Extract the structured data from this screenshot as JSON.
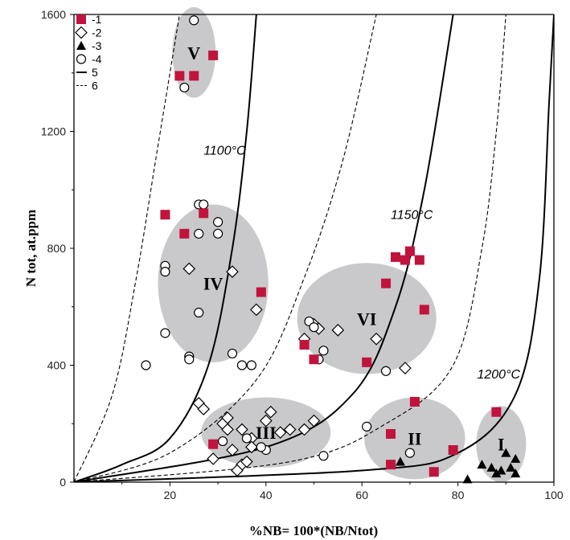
{
  "colors": {
    "accent": "#c0143c",
    "region": "#c9c9cb",
    "axis": "#000000"
  },
  "chart_data": {
    "type": "scatter",
    "xlabel": "%NB= 100*(NB/Ntot)",
    "ylabel": "N tot, at.ppm",
    "xlim": [
      0,
      100
    ],
    "ylim": [
      0,
      1600
    ],
    "xticks": [
      20,
      40,
      60,
      80,
      100
    ],
    "yticks": [
      0,
      400,
      800,
      1200,
      1600
    ],
    "grid": false,
    "legend_placement": "top-left",
    "legend": [
      {
        "marker": "filled-square",
        "label": "-1"
      },
      {
        "marker": "open-diamond",
        "label": "-2"
      },
      {
        "marker": "filled-triangle",
        "label": "-3"
      },
      {
        "marker": "open-circle",
        "label": "-4"
      },
      {
        "marker": "solid-line",
        "label": "5"
      },
      {
        "marker": "dashed-line",
        "label": "6"
      }
    ],
    "regions": [
      {
        "label": "V",
        "cx": 25,
        "cy": 1470,
        "rx": 4.5,
        "ry": 155
      },
      {
        "label": "IV",
        "cx": 29,
        "cy": 680,
        "rx": 11.5,
        "ry": 270
      },
      {
        "label": "VI",
        "cx": 61,
        "cy": 560,
        "rx": 14.5,
        "ry": 190
      },
      {
        "label": "III",
        "cx": 40,
        "cy": 170,
        "rx": 13.5,
        "ry": 120
      },
      {
        "label": "II",
        "cx": 71,
        "cy": 150,
        "rx": 10.5,
        "ry": 140
      },
      {
        "label": "I",
        "cx": 89,
        "cy": 130,
        "rx": 5.2,
        "ry": 130
      }
    ],
    "annotations": [
      {
        "text": "1100°C",
        "x": 27,
        "y": 1120
      },
      {
        "text": "1150°C",
        "x": 66,
        "y": 900
      },
      {
        "text": "1200°C",
        "x": 84,
        "y": 355
      }
    ],
    "curves": [
      {
        "style": "solid",
        "points": [
          [
            0,
            0
          ],
          [
            10,
            60
          ],
          [
            20,
            150
          ],
          [
            28,
            400
          ],
          [
            33,
            800
          ],
          [
            36,
            1200
          ],
          [
            38,
            1600
          ]
        ]
      },
      {
        "style": "dashed",
        "points": [
          [
            0,
            0
          ],
          [
            8,
            300
          ],
          [
            13,
            700
          ],
          [
            17,
            1100
          ],
          [
            21,
            1500
          ],
          [
            22,
            1600
          ]
        ]
      },
      {
        "style": "dashed",
        "points": [
          [
            0,
            0
          ],
          [
            20,
            100
          ],
          [
            38,
            350
          ],
          [
            48,
            700
          ],
          [
            56,
            1100
          ],
          [
            63,
            1600
          ]
        ]
      },
      {
        "style": "solid",
        "points": [
          [
            0,
            0
          ],
          [
            40,
            120
          ],
          [
            58,
            300
          ],
          [
            67,
            600
          ],
          [
            73,
            1000
          ],
          [
            79,
            1600
          ]
        ]
      },
      {
        "style": "dashed",
        "points": [
          [
            0,
            0
          ],
          [
            45,
            70
          ],
          [
            65,
            200
          ],
          [
            79,
            400
          ],
          [
            85,
            800
          ],
          [
            88,
            1200
          ],
          [
            90,
            1600
          ]
        ]
      },
      {
        "style": "solid",
        "points": [
          [
            0,
            0
          ],
          [
            60,
            40
          ],
          [
            80,
            100
          ],
          [
            92,
            300
          ],
          [
            97,
            700
          ],
          [
            99,
            1300
          ],
          [
            100,
            1600
          ]
        ]
      }
    ],
    "series": [
      {
        "name": "1",
        "marker": "filled-square",
        "points": [
          [
            25,
            1390
          ],
          [
            22,
            1390
          ],
          [
            29,
            1460
          ],
          [
            19,
            915
          ],
          [
            23,
            850
          ],
          [
            27,
            920
          ],
          [
            39,
            650
          ],
          [
            65,
            680
          ],
          [
            67,
            770
          ],
          [
            69,
            760
          ],
          [
            70,
            790
          ],
          [
            72,
            760
          ],
          [
            73,
            590
          ],
          [
            48,
            470
          ],
          [
            50,
            420
          ],
          [
            61,
            410
          ],
          [
            29,
            130
          ],
          [
            66,
            165
          ],
          [
            71,
            275
          ],
          [
            66,
            60
          ],
          [
            75,
            35
          ],
          [
            79,
            110
          ],
          [
            88,
            240
          ]
        ]
      },
      {
        "name": "2",
        "marker": "open-diamond",
        "points": [
          [
            24,
            730
          ],
          [
            33,
            720
          ],
          [
            38,
            590
          ],
          [
            48,
            490
          ],
          [
            50,
            540
          ],
          [
            51,
            525
          ],
          [
            55,
            520
          ],
          [
            63,
            490
          ],
          [
            69,
            390
          ],
          [
            26,
            270
          ],
          [
            27,
            250
          ],
          [
            31,
            200
          ],
          [
            32,
            180
          ],
          [
            32,
            220
          ],
          [
            35,
            180
          ],
          [
            37,
            150
          ],
          [
            40,
            210
          ],
          [
            41,
            240
          ],
          [
            43,
            170
          ],
          [
            45,
            180
          ],
          [
            48,
            180
          ],
          [
            50,
            210
          ],
          [
            29,
            80
          ],
          [
            33,
            110
          ],
          [
            35,
            60
          ],
          [
            36,
            70
          ],
          [
            37,
            120
          ],
          [
            34,
            40
          ]
        ]
      },
      {
        "name": "3",
        "marker": "filled-triangle",
        "points": [
          [
            68,
            70
          ],
          [
            82,
            10
          ],
          [
            85,
            60
          ],
          [
            87,
            50
          ],
          [
            88,
            30
          ],
          [
            89,
            40
          ],
          [
            90,
            100
          ],
          [
            91,
            50
          ],
          [
            92,
            80
          ],
          [
            92,
            30
          ]
        ]
      },
      {
        "name": "4",
        "marker": "open-circle",
        "points": [
          [
            25,
            1580
          ],
          [
            23,
            1350
          ],
          [
            26,
            950
          ],
          [
            27,
            950
          ],
          [
            30,
            890
          ],
          [
            30,
            850
          ],
          [
            26,
            850
          ],
          [
            19,
            740
          ],
          [
            19,
            720
          ],
          [
            26,
            580
          ],
          [
            19,
            510
          ],
          [
            24,
            430
          ],
          [
            24,
            420
          ],
          [
            33,
            440
          ],
          [
            35,
            400
          ],
          [
            37,
            400
          ],
          [
            15,
            400
          ],
          [
            49,
            550
          ],
          [
            50,
            530
          ],
          [
            52,
            450
          ],
          [
            51,
            420
          ],
          [
            65,
            380
          ],
          [
            31,
            140
          ],
          [
            36,
            150
          ],
          [
            40,
            110
          ],
          [
            39,
            120
          ],
          [
            52,
            90
          ],
          [
            61,
            190
          ],
          [
            70,
            100
          ]
        ]
      }
    ]
  }
}
